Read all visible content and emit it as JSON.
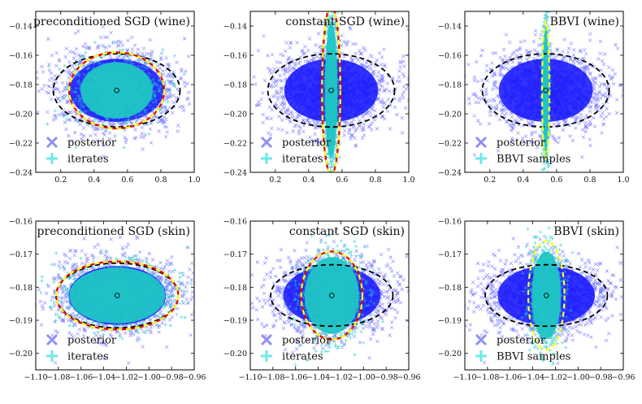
{
  "figure": {
    "colors": {
      "posterior": "#1010ff",
      "posterior_legend": "#9090ee",
      "iterates": "#20c5c5",
      "iterates_legend": "#70e8e8",
      "dashed_black": "#000000",
      "dashed_red": "#e00000",
      "dashed_yellow": "#ffff20",
      "frame": "#000000"
    }
  },
  "chart_data": [
    {
      "type": "scatter",
      "title": "preconditioned SGD (wine)",
      "xlim": [
        0.05,
        1.0
      ],
      "ylim": [
        -0.24,
        -0.13
      ],
      "xticks": [
        "0.2",
        "0.4",
        "0.6",
        "0.8",
        "1.0"
      ],
      "yticks": [
        "−0.24",
        "−0.22",
        "−0.20",
        "−0.18",
        "−0.16",
        "−0.14"
      ],
      "xtick_values": [
        0.2,
        0.4,
        0.6,
        0.8,
        1.0
      ],
      "ytick_values": [
        -0.24,
        -0.22,
        -0.2,
        -0.18,
        -0.16,
        -0.14
      ],
      "legend": [
        "posterior",
        "iterates"
      ],
      "legend_position": "bottom-left",
      "series": [
        {
          "name": "posterior",
          "marker": "x",
          "center": [
            0.535,
            -0.184
          ],
          "spread": [
            0.38,
            0.029
          ]
        },
        {
          "name": "iterates",
          "marker": "+",
          "center": [
            0.535,
            -0.184
          ],
          "spread": [
            0.27,
            0.024
          ]
        }
      ],
      "ellipses": [
        {
          "style": "black-dashed",
          "center": [
            0.535,
            -0.184
          ],
          "radii": [
            0.38,
            0.025
          ]
        },
        {
          "style": "red-yellow-dashed",
          "center": [
            0.535,
            -0.184
          ],
          "radii": [
            0.285,
            0.026
          ]
        }
      ]
    },
    {
      "type": "scatter",
      "title": "constant SGD (wine)",
      "xlim": [
        0.05,
        1.0
      ],
      "ylim": [
        -0.24,
        -0.13
      ],
      "xticks": [
        "0.2",
        "0.4",
        "0.6",
        "0.8",
        "1.0"
      ],
      "yticks": [
        "−0.24",
        "−0.22",
        "−0.20",
        "−0.18",
        "−0.16",
        "−0.14"
      ],
      "xtick_values": [
        0.2,
        0.4,
        0.6,
        0.8,
        1.0
      ],
      "ytick_values": [
        -0.24,
        -0.22,
        -0.2,
        -0.18,
        -0.16,
        -0.14
      ],
      "legend": [
        "posterior",
        "iterates"
      ],
      "legend_position": "bottom-left",
      "series": [
        {
          "name": "posterior",
          "marker": "x",
          "center": [
            0.535,
            -0.184
          ],
          "spread": [
            0.38,
            0.029
          ]
        },
        {
          "name": "iterates",
          "marker": "+",
          "center": [
            0.535,
            -0.184
          ],
          "spread": [
            0.045,
            0.058
          ]
        }
      ],
      "ellipses": [
        {
          "style": "black-dashed",
          "center": [
            0.535,
            -0.184
          ],
          "radii": [
            0.38,
            0.025
          ]
        },
        {
          "style": "red-yellow-dashed",
          "center": [
            0.535,
            -0.184
          ],
          "radii": [
            0.055,
            0.058
          ]
        }
      ]
    },
    {
      "type": "scatter",
      "title": "BBVI (wine)",
      "xlim": [
        0.05,
        1.0
      ],
      "ylim": [
        -0.24,
        -0.13
      ],
      "xticks": [
        "0.2",
        "0.4",
        "0.6",
        "0.8",
        "1.0"
      ],
      "yticks": [
        "−0.24",
        "−0.22",
        "−0.20",
        "−0.18",
        "−0.16",
        "−0.14"
      ],
      "xtick_values": [
        0.2,
        0.4,
        0.6,
        0.8,
        1.0
      ],
      "ytick_values": [
        -0.24,
        -0.22,
        -0.2,
        -0.18,
        -0.16,
        -0.14
      ],
      "legend": [
        "posterior",
        "BBVI samples"
      ],
      "legend_position": "bottom-left",
      "series": [
        {
          "name": "posterior",
          "marker": "x",
          "center": [
            0.535,
            -0.184
          ],
          "spread": [
            0.38,
            0.029
          ]
        },
        {
          "name": "BBVI samples",
          "marker": "+",
          "center": [
            0.535,
            -0.184
          ],
          "spread": [
            0.022,
            0.052
          ]
        }
      ],
      "ellipses": [
        {
          "style": "black-dashed",
          "center": [
            0.535,
            -0.184
          ],
          "radii": [
            0.38,
            0.025
          ]
        },
        {
          "style": "yellow-dashed",
          "center": [
            0.535,
            -0.184
          ],
          "radii": [
            0.022,
            0.047
          ]
        }
      ]
    },
    {
      "type": "scatter",
      "title": "preconditioned SGD (skin)",
      "xlim": [
        -1.1,
        -0.96
      ],
      "ylim": [
        -0.205,
        -0.16
      ],
      "xticks": [
        "−1.10",
        "−1.08",
        "−1.06",
        "−1.04",
        "−1.02",
        "−1.00",
        "−0.98",
        "−0.96"
      ],
      "yticks": [
        "−0.20",
        "−0.19",
        "−0.18",
        "−0.17",
        "−0.16"
      ],
      "xtick_values": [
        -1.1,
        -1.08,
        -1.06,
        -1.04,
        -1.02,
        -1.0,
        -0.98,
        -0.96
      ],
      "ytick_values": [
        -0.2,
        -0.19,
        -0.18,
        -0.17,
        -0.16
      ],
      "legend": [
        "posterior",
        "iterates"
      ],
      "legend_position": "bottom-left",
      "series": [
        {
          "name": "posterior",
          "marker": "x",
          "center": [
            -1.028,
            -0.1825
          ],
          "spread": [
            0.058,
            0.012
          ]
        },
        {
          "name": "iterates",
          "marker": "+",
          "center": [
            -1.028,
            -0.1825
          ],
          "spread": [
            0.053,
            0.0105
          ]
        }
      ],
      "ellipses": [
        {
          "style": "black-dashed",
          "center": [
            -1.028,
            -0.1825
          ],
          "radii": [
            0.054,
            0.0098
          ]
        },
        {
          "style": "red-yellow-dashed",
          "center": [
            -1.028,
            -0.1825
          ],
          "radii": [
            0.054,
            0.0103
          ]
        }
      ]
    },
    {
      "type": "scatter",
      "title": "constant SGD (skin)",
      "xlim": [
        -1.1,
        -0.96
      ],
      "ylim": [
        -0.205,
        -0.16
      ],
      "xticks": [
        "−1.10",
        "−1.08",
        "−1.06",
        "−1.04",
        "−1.02",
        "−1.00",
        "−0.98",
        "−0.96"
      ],
      "yticks": [
        "−0.20",
        "−0.19",
        "−0.18",
        "−0.17",
        "−0.16"
      ],
      "xtick_values": [
        -1.1,
        -1.08,
        -1.06,
        -1.04,
        -1.02,
        -1.0,
        -0.98,
        -0.96
      ],
      "ytick_values": [
        -0.2,
        -0.19,
        -0.18,
        -0.17,
        -0.16
      ],
      "legend": [
        "posterior",
        "iterates"
      ],
      "legend_position": "bottom-left",
      "series": [
        {
          "name": "posterior",
          "marker": "x",
          "center": [
            -1.028,
            -0.1825
          ],
          "spread": [
            0.058,
            0.012
          ]
        },
        {
          "name": "iterates",
          "marker": "+",
          "center": [
            -1.028,
            -0.1825
          ],
          "spread": [
            0.03,
            0.0145
          ]
        }
      ],
      "ellipses": [
        {
          "style": "black-dashed",
          "center": [
            -1.028,
            -0.1825
          ],
          "radii": [
            0.054,
            0.0093
          ]
        },
        {
          "style": "red-yellow-dashed",
          "center": [
            -1.028,
            -0.1825
          ],
          "radii": [
            0.027,
            0.0133
          ]
        }
      ]
    },
    {
      "type": "scatter",
      "title": "BBVI (skin)",
      "xlim": [
        -1.1,
        -0.96
      ],
      "ylim": [
        -0.205,
        -0.16
      ],
      "xticks": [
        "−1.10",
        "−1.08",
        "−1.06",
        "−1.04",
        "−1.02",
        "−1.00",
        "−0.98",
        "−0.96"
      ],
      "yticks": [
        "−0.20",
        "−0.19",
        "−0.18",
        "−0.17",
        "−0.16"
      ],
      "xtick_values": [
        -1.1,
        -1.08,
        -1.06,
        -1.04,
        -1.02,
        -1.0,
        -0.98,
        -0.96
      ],
      "ytick_values": [
        -0.2,
        -0.19,
        -0.18,
        -0.17,
        -0.16
      ],
      "legend": [
        "posterior",
        "BBVI samples"
      ],
      "legend_position": "bottom-left",
      "series": [
        {
          "name": "posterior",
          "marker": "x",
          "center": [
            -1.028,
            -0.1825
          ],
          "spread": [
            0.058,
            0.012
          ]
        },
        {
          "name": "BBVI samples",
          "marker": "+",
          "center": [
            -1.028,
            -0.1825
          ],
          "spread": [
            0.016,
            0.0165
          ]
        }
      ],
      "ellipses": [
        {
          "style": "black-dashed",
          "center": [
            -1.028,
            -0.1825
          ],
          "radii": [
            0.054,
            0.0093
          ]
        },
        {
          "style": "yellow-dashed",
          "center": [
            -1.028,
            -0.1825
          ],
          "radii": [
            0.016,
            0.0165
          ]
        }
      ]
    }
  ]
}
